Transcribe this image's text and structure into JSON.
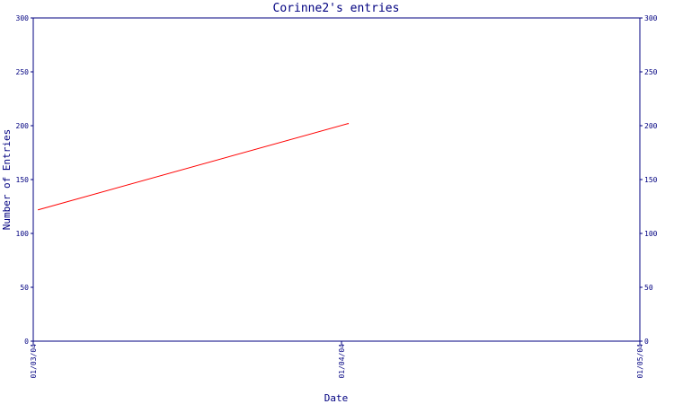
{
  "chart_data": {
    "type": "line",
    "title": "Corinne2's entries",
    "xlabel": "Date",
    "ylabel": "Number of Entries",
    "x_ticks": [
      "01/03/04",
      "01/04/04",
      "01/05/04"
    ],
    "y_ticks": [
      "0",
      "50",
      "100",
      "150",
      "200",
      "250",
      "300"
    ],
    "ylim": [
      0,
      300
    ],
    "xlim": [
      "01/03/04",
      "01/05/04"
    ],
    "series": [
      {
        "color": "#ff0000",
        "points": [
          {
            "x": "01/03/04 12:30",
            "y": 122
          },
          {
            "x": "01/04/04 16:00",
            "y": 202
          }
        ]
      }
    ],
    "y_axis_right": true,
    "grid": false,
    "colors": {
      "axis": "#000080",
      "line": "#ff0000",
      "background": "#ffffff"
    }
  }
}
